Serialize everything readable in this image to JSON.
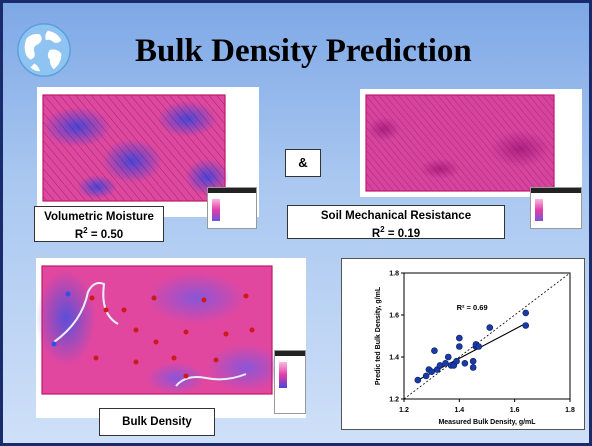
{
  "title": "Bulk Density Prediction",
  "ampersand": "&",
  "panels": {
    "moisture": {
      "name": "Volumetric Moisture",
      "r2_label": "R",
      "r2_value": "2 = 0.50"
    },
    "resistance": {
      "name": "Soil Mechanical Resistance",
      "r2_label": "R",
      "r2_value": "2 = 0.19"
    },
    "bulk": {
      "name": "Bulk Density"
    }
  },
  "colors": {
    "border": "#1a2b6b",
    "map_magenta": "#e43ca8",
    "map_blue": "#6655e0",
    "sample_point": "#cc1a1a",
    "scatter_point": "#1a3aa8"
  },
  "chart_data": {
    "type": "scatter",
    "annotation": "R² = 0.69",
    "xlabel": "Measured Bulk Density, g/mL",
    "ylabel": "Predic ted Bulk Density, g/mL",
    "xlim": [
      1.2,
      1.8
    ],
    "ylim": [
      1.2,
      1.8
    ],
    "xticks": [
      "1.2",
      "1.4",
      "1.6",
      "1.8"
    ],
    "yticks": [
      "1.2",
      "1.4",
      "1.6",
      "1.8"
    ],
    "points": [
      [
        1.25,
        1.29
      ],
      [
        1.28,
        1.31
      ],
      [
        1.29,
        1.34
      ],
      [
        1.3,
        1.33
      ],
      [
        1.31,
        1.43
      ],
      [
        1.32,
        1.34
      ],
      [
        1.33,
        1.36
      ],
      [
        1.35,
        1.37
      ],
      [
        1.36,
        1.4
      ],
      [
        1.37,
        1.36
      ],
      [
        1.38,
        1.36
      ],
      [
        1.39,
        1.38
      ],
      [
        1.4,
        1.49
      ],
      [
        1.4,
        1.45
      ],
      [
        1.42,
        1.37
      ],
      [
        1.45,
        1.35
      ],
      [
        1.45,
        1.38
      ],
      [
        1.46,
        1.45
      ],
      [
        1.46,
        1.46
      ],
      [
        1.47,
        1.45
      ],
      [
        1.51,
        1.54
      ],
      [
        1.64,
        1.61
      ],
      [
        1.64,
        1.55
      ]
    ],
    "fit_line": [
      [
        1.25,
        1.29
      ],
      [
        1.64,
        1.56
      ]
    ],
    "identity_line": true
  }
}
